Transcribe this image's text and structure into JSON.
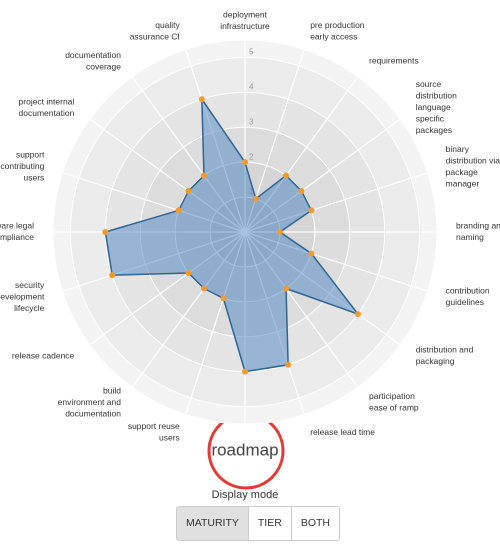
{
  "chart_data": {
    "type": "radar",
    "categories": [
      [
        "deployment",
        "infrastructure"
      ],
      [
        "pre production",
        "early access"
      ],
      [
        "requirements"
      ],
      [
        "source",
        "distribution",
        "language",
        "specific",
        "packages"
      ],
      [
        "binary",
        "distribution via",
        "package",
        "manager"
      ],
      [
        "branding and",
        "naming"
      ],
      [
        "contribution",
        "guidelines"
      ],
      [
        "distribution and",
        "packaging"
      ],
      [
        "participation",
        "ease of ramp"
      ],
      [
        "release lead time"
      ],
      [
        "roadmap"
      ],
      [
        "support reuse",
        "users"
      ],
      [
        "build",
        "environment and",
        "documentation"
      ],
      [
        "release cadence"
      ],
      [
        "security",
        "development",
        "lifecycle"
      ],
      [
        "software legal",
        "compliance"
      ],
      [
        "support",
        "contributing",
        "users"
      ],
      [
        "project internal",
        "documentation"
      ],
      [
        "documentation",
        "coverage"
      ],
      [
        "quality",
        "assurance CI"
      ]
    ],
    "values": [
      2,
      1,
      2,
      2,
      2,
      1,
      2,
      4,
      2,
      4,
      4,
      2,
      2,
      2,
      4,
      4,
      2,
      2,
      2,
      4
    ],
    "color": "#4a86bf",
    "marker_color": "#f39a2e",
    "rlim": [
      0,
      5.5
    ],
    "rticks": [
      1,
      2,
      3,
      4,
      5
    ]
  },
  "controls": {
    "label": "Display mode",
    "buttons": [
      "MATURITY",
      "TIER",
      "BOTH"
    ],
    "active": 0
  }
}
